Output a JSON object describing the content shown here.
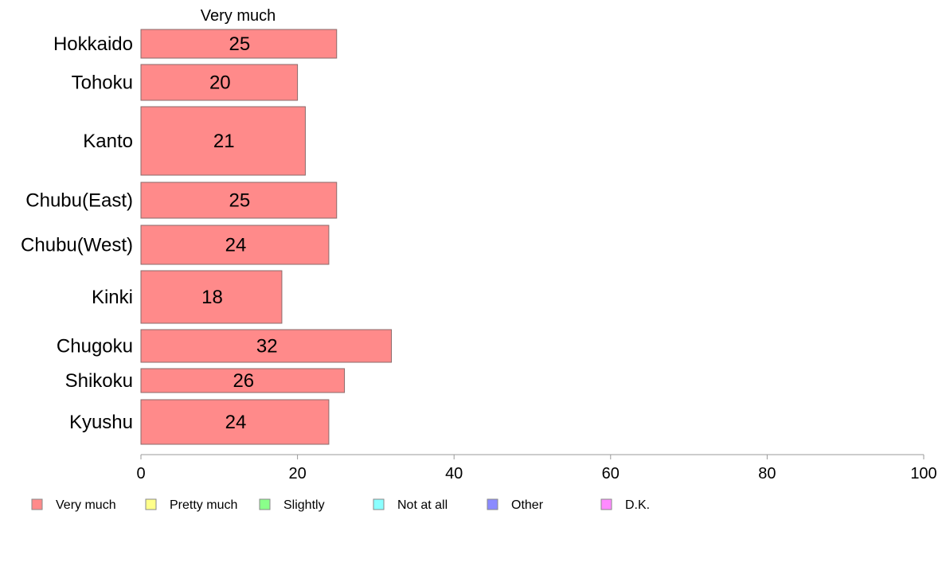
{
  "chart_data": {
    "type": "bar",
    "orientation": "horizontal",
    "panel_title": "Very much",
    "categories": [
      "Hokkaido",
      "Tohoku",
      "Kanto",
      "Chubu(East)",
      "Chubu(West)",
      "Kinki",
      "Chugoku",
      "Shikoku",
      "Kyushu"
    ],
    "series": [
      {
        "name": "Very much",
        "values": [
          25,
          20,
          21,
          25,
          24,
          18,
          32,
          26,
          24
        ]
      }
    ],
    "value_labels": [
      "25",
      "20",
      "21",
      "25",
      "24",
      "18",
      "32",
      "26",
      "24"
    ],
    "xlim": [
      0,
      100
    ],
    "xticks": [
      0,
      20,
      40,
      60,
      80,
      100
    ],
    "xtick_labels": [
      "0",
      "20",
      "40",
      "60",
      "80",
      "100"
    ],
    "grid": false,
    "legend_position": "bottom",
    "legend": [
      {
        "label": "Very much",
        "color": "#ff8a8a"
      },
      {
        "label": "Pretty much",
        "color": "#ffff8a"
      },
      {
        "label": "Slightly",
        "color": "#8aff8a"
      },
      {
        "label": "Not at all",
        "color": "#8affff"
      },
      {
        "label": "Other",
        "color": "#8a8aff"
      },
      {
        "label": "D.K.",
        "color": "#ff8aff"
      }
    ],
    "bar_color": "#ff8a8a",
    "bar_stroke": "#8a6a6a",
    "axis_color": "#9a9a9a"
  }
}
